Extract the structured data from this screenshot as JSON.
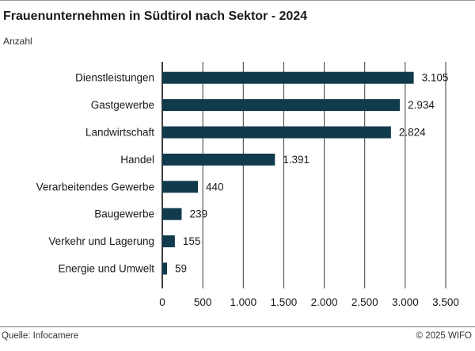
{
  "header": {
    "title": "Frauenunternehmen in Südtirol nach Sektor - 2024",
    "subtitle": "Anzahl"
  },
  "footer": {
    "source": "Quelle: Infocamere",
    "copyright": "© 2025 WIFO"
  },
  "colors": {
    "bar": "#113a4c",
    "grid": "#3a3a3a",
    "text": "#1a1a1a"
  },
  "chart_data": {
    "type": "bar",
    "orientation": "horizontal",
    "title": "Frauenunternehmen in Südtirol nach Sektor - 2024",
    "ylabel": "Anzahl",
    "xlabel": "",
    "categories": [
      "Dienstleistungen",
      "Gastgewerbe",
      "Landwirtschaft",
      "Handel",
      "Verarbeitendes Gewerbe",
      "Baugewerbe",
      "Verkehr und Lagerung",
      "Energie und Umwelt"
    ],
    "values": [
      3105,
      2934,
      2824,
      1391,
      440,
      239,
      155,
      59
    ],
    "value_labels": [
      "3.105",
      "2.934",
      "2.824",
      "1.391",
      "440",
      "239",
      "155",
      "59"
    ],
    "xlim": [
      0,
      3500
    ],
    "ticks": [
      0,
      500,
      1000,
      1500,
      2000,
      2500,
      3000,
      3500
    ],
    "tick_labels": [
      "0",
      "500",
      "1.000",
      "1.500",
      "2.000",
      "2.500",
      "3.000",
      "3.500"
    ],
    "grid": true
  }
}
